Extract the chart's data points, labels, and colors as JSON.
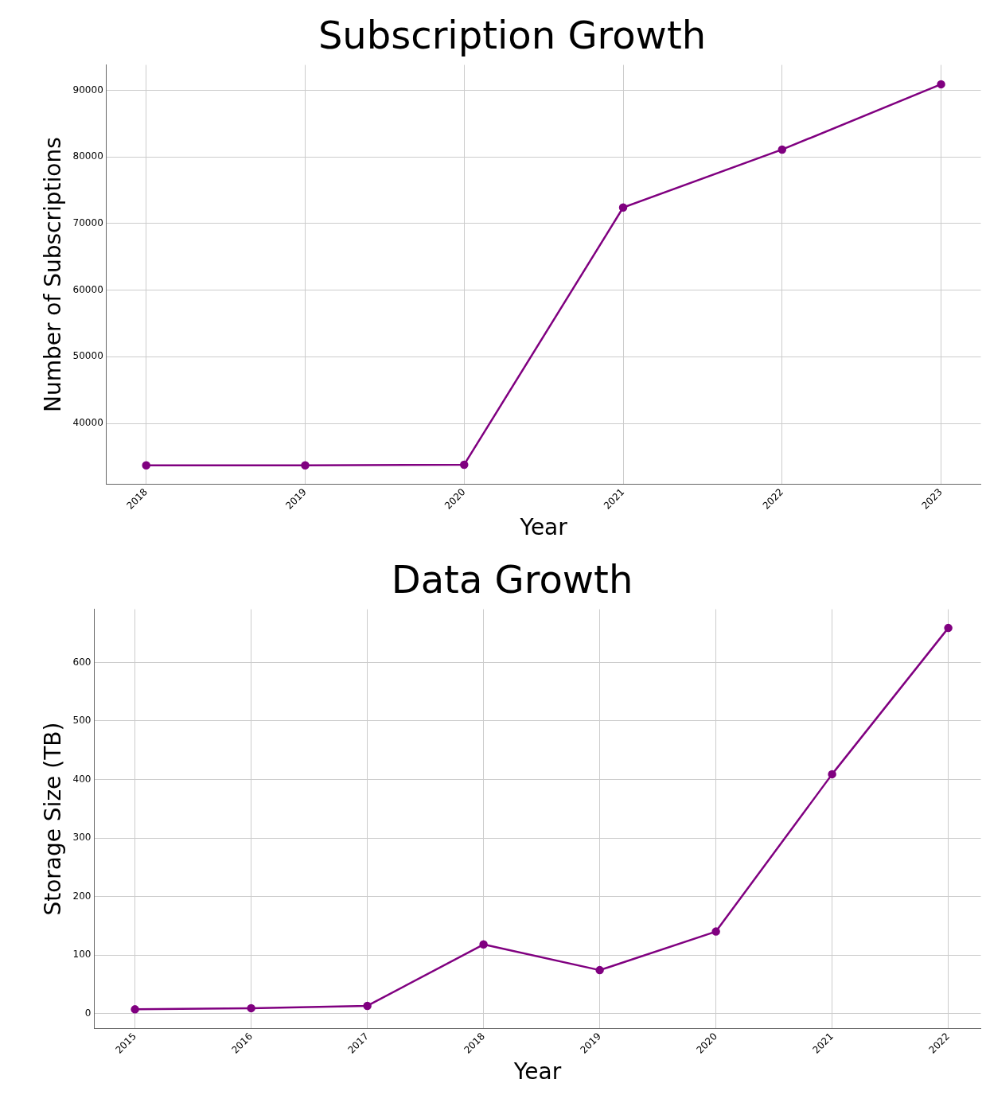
{
  "chart_data": [
    {
      "type": "line",
      "title": "Subscription Growth",
      "xlabel": "Year",
      "ylabel": "Number of Subscriptions",
      "x": [
        2018,
        2019,
        2020,
        2021,
        2022,
        2023
      ],
      "xlim": [
        2017.75,
        2023.25
      ],
      "xticks": [
        2018,
        2019,
        2020,
        2021,
        2022,
        2023
      ],
      "ylim": [
        30850,
        93800
      ],
      "yticks": [
        40000,
        50000,
        60000,
        70000,
        80000,
        90000
      ],
      "series": [
        {
          "color": "#800080",
          "values": [
            33700,
            33700,
            33800,
            72400,
            81100,
            90900
          ]
        }
      ],
      "marker": "circle",
      "grid": true,
      "legend": false
    },
    {
      "type": "line",
      "title": "Data Growth",
      "xlabel": "Year",
      "ylabel": "Storage Size (TB)",
      "x": [
        2015,
        2016,
        2017,
        2018,
        2019,
        2020,
        2021,
        2022
      ],
      "xlim": [
        2014.65,
        2022.28
      ],
      "xticks": [
        2015,
        2016,
        2017,
        2018,
        2019,
        2020,
        2021,
        2022
      ],
      "ylim": [
        -26,
        691
      ],
      "yticks": [
        0,
        100,
        200,
        300,
        400,
        500,
        600
      ],
      "series": [
        {
          "color": "#800080",
          "values": [
            7,
            9,
            13,
            118,
            74,
            140,
            409,
            659
          ]
        }
      ],
      "marker": "circle",
      "grid": true,
      "legend": false
    }
  ]
}
